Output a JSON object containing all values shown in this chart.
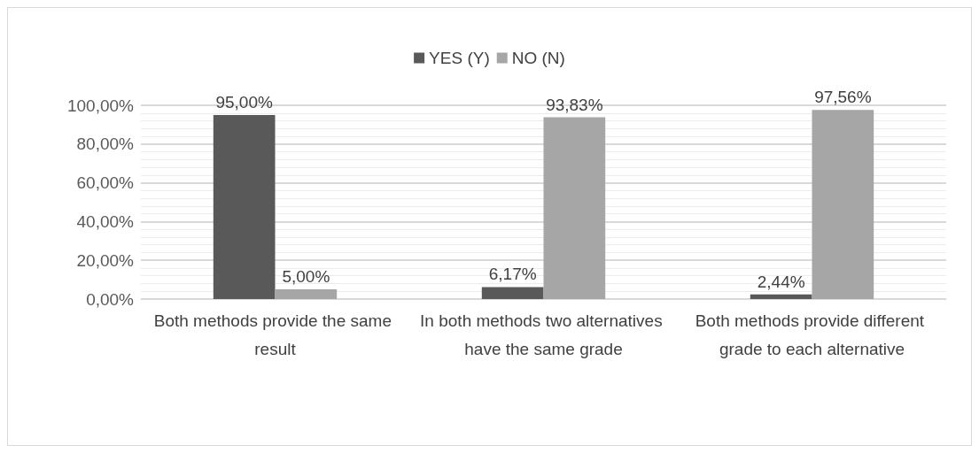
{
  "chart_data": {
    "type": "bar",
    "categories": [
      "Both methods provide the same result",
      "In both methods two alternatives have the same grade",
      "Both methods provide different grade to each alternative"
    ],
    "series": [
      {
        "name": "YES (Y)",
        "color": "#595959",
        "values": [
          95,
          6.17,
          2.44
        ],
        "value_labels": [
          "95,00%",
          "6,17%",
          "2,44%"
        ]
      },
      {
        "name": "NO (N)",
        "color": "#a6a6a6",
        "values": [
          5,
          93.83,
          97.56
        ],
        "value_labels": [
          "5,00%",
          "93,83%",
          "97,56%"
        ]
      }
    ],
    "ylim": [
      0,
      100
    ],
    "yticks": [
      {
        "value": 0,
        "label": "0,00%"
      },
      {
        "value": 20,
        "label": "20,00%"
      },
      {
        "value": 40,
        "label": "40,00%"
      },
      {
        "value": 60,
        "label": "60,00%"
      },
      {
        "value": 80,
        "label": "80,00%"
      },
      {
        "value": 100,
        "label": "100,00%"
      }
    ],
    "grid": true,
    "legend": "top"
  }
}
